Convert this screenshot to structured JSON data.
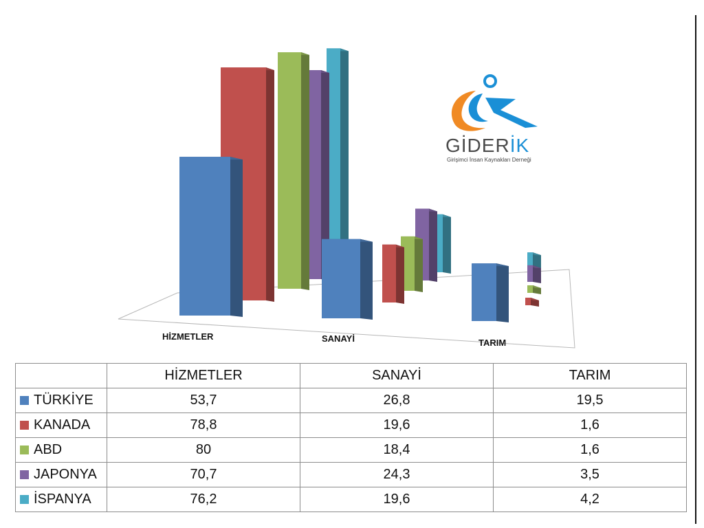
{
  "chart_data": {
    "type": "bar",
    "categories": [
      "HİZMETLER",
      "SANAYİ",
      "TARIM"
    ],
    "series": [
      {
        "name": "TÜRKİYE",
        "color": "#4f81bd",
        "values": [
          53.7,
          26.8,
          19.5
        ]
      },
      {
        "name": "KANADA",
        "color": "#c0504d",
        "values": [
          78.8,
          19.6,
          1.6
        ]
      },
      {
        "name": "ABD",
        "color": "#9bbb59",
        "values": [
          80,
          18.4,
          1.6
        ]
      },
      {
        "name": "JAPONYA",
        "color": "#8064a2",
        "values": [
          70.7,
          24.3,
          3.5
        ]
      },
      {
        "name": "İSPANYA",
        "color": "#4bacc6",
        "values": [
          76.2,
          19.6,
          4.2
        ]
      }
    ],
    "value_format": "decimal-comma",
    "legend": "table-below"
  },
  "table": {
    "headers": [
      "HİZMETLER",
      "SANAYİ",
      "TARIM"
    ],
    "rows": [
      {
        "label": "TÜRKİYE",
        "color": "#4f81bd",
        "cells": [
          "53,7",
          "26,8",
          "19,5"
        ]
      },
      {
        "label": "KANADA",
        "color": "#c0504d",
        "cells": [
          "78,8",
          "19,6",
          "1,6"
        ]
      },
      {
        "label": "ABD",
        "color": "#9bbb59",
        "cells": [
          "80",
          "18,4",
          "1,6"
        ]
      },
      {
        "label": "JAPONYA",
        "color": "#8064a2",
        "cells": [
          "70,7",
          "24,3",
          "3,5"
        ]
      },
      {
        "label": "İSPANYA",
        "color": "#4bacc6",
        "cells": [
          "76,2",
          "19,6",
          "4,2"
        ]
      }
    ]
  },
  "logo": {
    "name_main": "GİDER",
    "name_accent": "İK",
    "tagline": "Girişimci İnsan Kaynakları Derneği",
    "colors": {
      "orange": "#f08a24",
      "blue": "#1a8fd6",
      "gray": "#4a4a4a"
    }
  }
}
